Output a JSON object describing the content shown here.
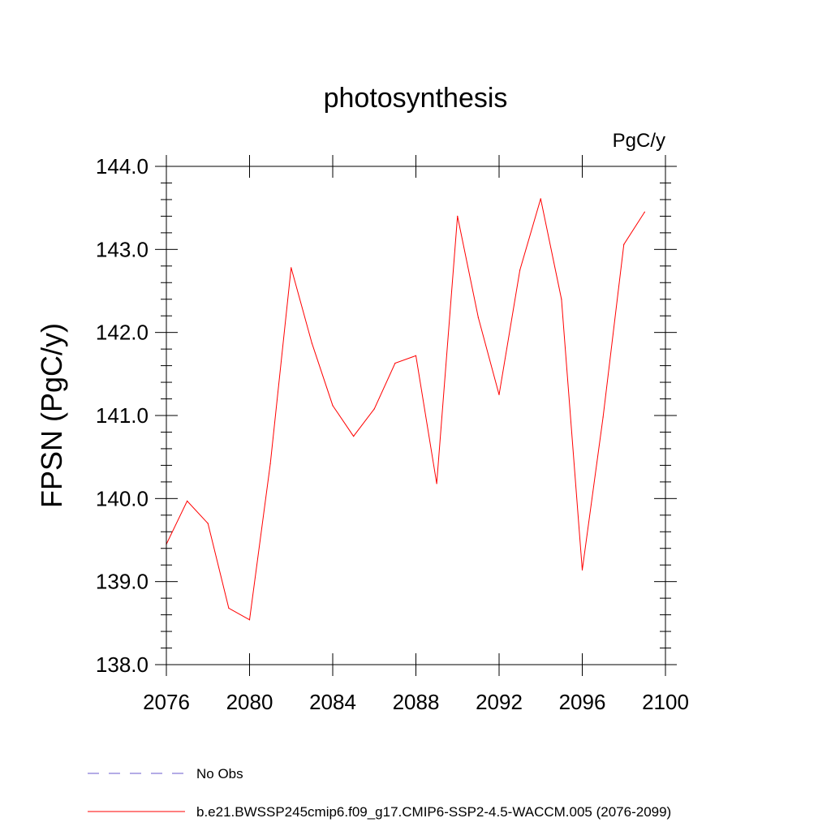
{
  "chart_data": {
    "type": "line",
    "title": "photosynthesis",
    "units_label": "PgC/y",
    "ylabel": "FPSN  (PgC/y)",
    "xlabel": "",
    "xlim": [
      2076,
      2100
    ],
    "ylim": [
      138.0,
      144.0
    ],
    "x_ticks": [
      2076,
      2080,
      2084,
      2088,
      2092,
      2096,
      2100
    ],
    "x_tick_labels": [
      "2076",
      "2080",
      "2084",
      "2088",
      "2092",
      "2096",
      "2100"
    ],
    "y_ticks": [
      138.0,
      139.0,
      140.0,
      141.0,
      142.0,
      143.0,
      144.0
    ],
    "y_tick_labels": [
      "138.0",
      "139.0",
      "140.0",
      "141.0",
      "142.0",
      "143.0",
      "144.0"
    ],
    "grid": false,
    "legend_position": "bottom-left",
    "series": [
      {
        "name": "b.e21.BWSSP245cmip6.f09_g17.CMIP6-SSP2-4.5-WACCM.005 (2076-2099)",
        "color": "#ff0000",
        "style": "solid",
        "x": [
          2076,
          2077,
          2078,
          2079,
          2080,
          2081,
          2082,
          2083,
          2084,
          2085,
          2086,
          2087,
          2088,
          2089,
          2090,
          2091,
          2092,
          2093,
          2094,
          2095,
          2096,
          2097,
          2098,
          2099
        ],
        "values": [
          139.45,
          139.97,
          139.7,
          138.68,
          138.54,
          140.42,
          142.78,
          141.87,
          141.12,
          140.75,
          141.08,
          141.63,
          141.72,
          140.18,
          143.4,
          142.18,
          141.25,
          142.75,
          143.61,
          142.4,
          139.14,
          140.98,
          143.06,
          143.45
        ]
      }
    ],
    "legend": [
      {
        "label": "No Obs",
        "color": "#6a5acd",
        "style": "dashed"
      },
      {
        "label": "b.e21.BWSSP245cmip6.f09_g17.CMIP6-SSP2-4.5-WACCM.005 (2076-2099)",
        "color": "#ff0000",
        "style": "solid"
      }
    ]
  }
}
